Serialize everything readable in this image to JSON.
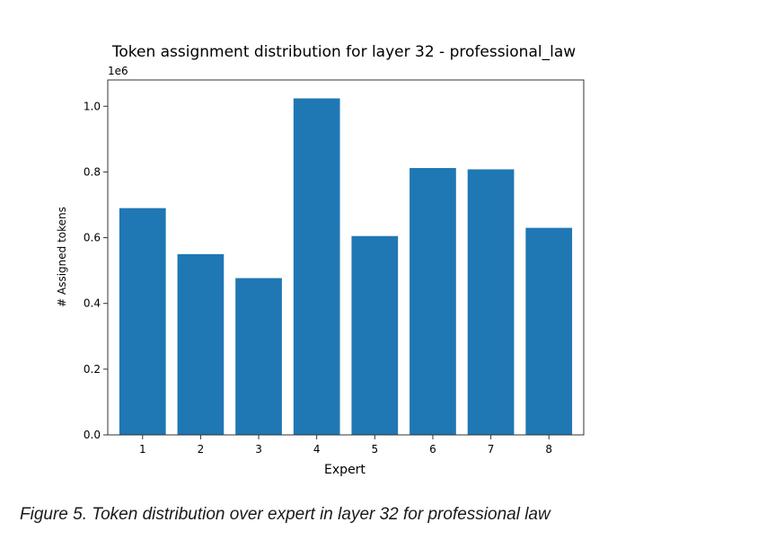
{
  "chart_data": {
    "type": "bar",
    "title": "Token assignment distribution for layer 32 - professional_law",
    "offset_label": "1e6",
    "xlabel": "Expert",
    "ylabel": "# Assigned tokens",
    "categories": [
      "1",
      "2",
      "3",
      "4",
      "5",
      "6",
      "7",
      "8"
    ],
    "values": [
      690000,
      550000,
      477000,
      1024000,
      605000,
      812000,
      808000,
      630000
    ],
    "ylim": [
      0,
      1080000
    ],
    "yticks": [
      0.0,
      0.2,
      0.4,
      0.6,
      0.8,
      1.0
    ],
    "ytick_labels": [
      "0.0",
      "0.2",
      "0.4",
      "0.6",
      "0.8",
      "1.0"
    ],
    "bar_color": "#1f77b4",
    "grid": false,
    "legend": "none"
  },
  "caption": "Figure 5. Token distribution over expert in layer 32 for professional law"
}
